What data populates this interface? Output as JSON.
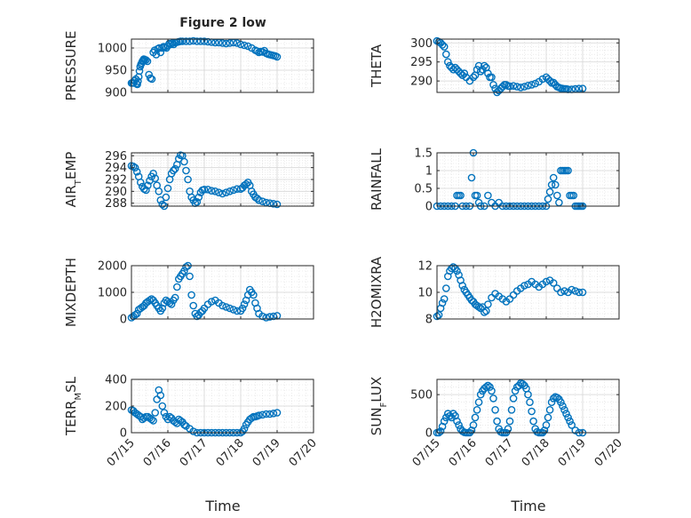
{
  "figure": {
    "title": "Figure 2 low",
    "marker_color": "#0072bd",
    "x_ticks": [
      "07/15",
      "07/16",
      "07/17",
      "07/18",
      "07/19",
      "07/20"
    ],
    "x_axis_label": "Time",
    "grid": true
  },
  "chart_data": [
    {
      "type": "scatter",
      "ylabel": "PRESSURE",
      "ylim": [
        900,
        1020
      ],
      "yticks": [
        "900",
        "950",
        "1000"
      ],
      "x": [
        0.0,
        0.03,
        0.06,
        0.09,
        0.12,
        0.14,
        0.16,
        0.18,
        0.2,
        0.22,
        0.24,
        0.26,
        0.28,
        0.3,
        0.32,
        0.34,
        0.36,
        0.4,
        0.44,
        0.48,
        0.52,
        0.56,
        0.6,
        0.64,
        0.68,
        0.72,
        0.76,
        0.8,
        0.84,
        0.88,
        0.92,
        0.96,
        1.0,
        1.04,
        1.08,
        1.12,
        1.16,
        1.2,
        1.25,
        1.3,
        1.35,
        1.4,
        1.5,
        1.6,
        1.7,
        1.8,
        1.9,
        2.0,
        2.1,
        2.2,
        2.3,
        2.4,
        2.5,
        2.6,
        2.7,
        2.8,
        2.9,
        3.0,
        3.1,
        3.2,
        3.3,
        3.4,
        3.45,
        3.5,
        3.55,
        3.6,
        3.65,
        3.7,
        3.75,
        3.8,
        3.85,
        3.9,
        3.95,
        4.0
      ],
      "y": [
        921,
        922,
        921,
        926,
        930,
        920,
        918,
        925,
        935,
        948,
        958,
        963,
        966,
        970,
        972,
        975,
        974,
        973,
        970,
        940,
        932,
        930,
        990,
        995,
        985,
        998,
        1000,
        990,
        1000,
        1003,
        1002,
        1000,
        1005,
        1010,
        1008,
        1011,
        1008,
        1012,
        1013,
        1014,
        1015,
        1015,
        1015,
        1015,
        1016,
        1015,
        1015,
        1015,
        1014,
        1013,
        1012,
        1012,
        1011,
        1010,
        1011,
        1012,
        1011,
        1008,
        1006,
        1004,
        1000,
        995,
        993,
        990,
        992,
        991,
        994,
        988,
        986,
        985,
        984,
        983,
        982,
        980
      ]
    },
    {
      "type": "scatter",
      "ylabel": "THETA",
      "ylim": [
        287,
        301
      ],
      "yticks": [
        "290",
        "295",
        "300"
      ],
      "x": [
        0.0,
        0.05,
        0.1,
        0.15,
        0.2,
        0.25,
        0.3,
        0.35,
        0.4,
        0.45,
        0.5,
        0.55,
        0.6,
        0.65,
        0.7,
        0.75,
        0.8,
        0.9,
        1.0,
        1.05,
        1.1,
        1.15,
        1.2,
        1.25,
        1.3,
        1.35,
        1.4,
        1.45,
        1.5,
        1.55,
        1.6,
        1.65,
        1.7,
        1.75,
        1.8,
        1.85,
        1.9,
        1.95,
        2.0,
        2.1,
        2.2,
        2.3,
        2.4,
        2.5,
        2.6,
        2.7,
        2.8,
        2.9,
        3.0,
        3.05,
        3.1,
        3.15,
        3.2,
        3.25,
        3.3,
        3.35,
        3.4,
        3.45,
        3.5,
        3.55,
        3.6,
        3.7,
        3.8,
        3.9,
        4.0
      ],
      "y": [
        300.5,
        300.3,
        300,
        299.5,
        299,
        297,
        295,
        294,
        293.5,
        293,
        293.5,
        293,
        292.5,
        292,
        291.5,
        292,
        291,
        290,
        291,
        291.5,
        293,
        294,
        292.5,
        293,
        294,
        293.5,
        292,
        291,
        291,
        289,
        288,
        287,
        287.5,
        288,
        288.5,
        289,
        289,
        288.7,
        288.6,
        288.7,
        288.5,
        288.3,
        288.5,
        288.8,
        289,
        289.3,
        289.8,
        290.5,
        291,
        290.5,
        290,
        289.5,
        289.6,
        289,
        288.5,
        288.3,
        288.1,
        288,
        287.9,
        287.9,
        287.8,
        287.8,
        287.9,
        288,
        288
      ]
    },
    {
      "type": "scatter",
      "ylabel": "AIR_TEMP",
      "ylim": [
        287.5,
        296.5
      ],
      "yticks": [
        "288",
        "290",
        "292",
        "294",
        "296"
      ],
      "x": [
        0.0,
        0.05,
        0.1,
        0.15,
        0.2,
        0.25,
        0.3,
        0.35,
        0.4,
        0.45,
        0.5,
        0.55,
        0.6,
        0.65,
        0.7,
        0.75,
        0.8,
        0.85,
        0.9,
        0.95,
        1.0,
        1.05,
        1.1,
        1.15,
        1.2,
        1.25,
        1.3,
        1.35,
        1.4,
        1.45,
        1.5,
        1.55,
        1.6,
        1.65,
        1.7,
        1.75,
        1.8,
        1.85,
        1.9,
        1.95,
        2.0,
        2.1,
        2.2,
        2.3,
        2.4,
        2.5,
        2.6,
        2.7,
        2.8,
        2.9,
        3.0,
        3.05,
        3.1,
        3.15,
        3.2,
        3.25,
        3.3,
        3.35,
        3.4,
        3.45,
        3.5,
        3.6,
        3.7,
        3.8,
        3.9,
        4.0
      ],
      "y": [
        294.3,
        294.2,
        294,
        293.3,
        292.5,
        291.5,
        290.8,
        290.4,
        290.2,
        291,
        291.8,
        292.5,
        293,
        292.2,
        291,
        290,
        288.5,
        287.8,
        287.5,
        289,
        290.5,
        292,
        293,
        293.5,
        293.8,
        294.5,
        295.5,
        296.1,
        296,
        295,
        293.5,
        292,
        290,
        289,
        288.5,
        288,
        288.2,
        289,
        289.8,
        290.2,
        290.3,
        290.3,
        290.1,
        290,
        289.8,
        289.6,
        289.8,
        290,
        290.2,
        290.4,
        290.4,
        290.6,
        291,
        291.2,
        291.5,
        291,
        290,
        289.5,
        289,
        288.8,
        288.5,
        288.3,
        288.1,
        288,
        287.9,
        287.8
      ]
    },
    {
      "type": "scatter",
      "ylabel": "RAINFALL",
      "ylim": [
        0,
        1.5
      ],
      "yticks": [
        "0",
        "0.5",
        "1",
        "1.5"
      ],
      "x": [
        0.0,
        0.1,
        0.2,
        0.3,
        0.4,
        0.5,
        0.55,
        0.6,
        0.65,
        0.7,
        0.8,
        0.9,
        0.95,
        1.0,
        1.05,
        1.1,
        1.15,
        1.2,
        1.3,
        1.4,
        1.5,
        1.6,
        1.7,
        1.8,
        1.9,
        2.0,
        2.1,
        2.2,
        2.3,
        2.4,
        2.5,
        2.6,
        2.7,
        2.8,
        2.9,
        3.0,
        3.05,
        3.1,
        3.15,
        3.2,
        3.25,
        3.3,
        3.35,
        3.4,
        3.45,
        3.5,
        3.55,
        3.6,
        3.65,
        3.7,
        3.75,
        3.8,
        3.85,
        3.9,
        3.95,
        4.0
      ],
      "y": [
        0,
        0,
        0,
        0,
        0,
        0,
        0.3,
        0.3,
        0.3,
        0,
        0,
        0,
        0.8,
        1.5,
        0.3,
        0.3,
        0.1,
        0,
        0,
        0.3,
        0.1,
        0,
        0.1,
        0,
        0,
        0,
        0,
        0,
        0,
        0,
        0,
        0,
        0,
        0,
        0,
        0,
        0.2,
        0.4,
        0.6,
        0.8,
        0.6,
        0.3,
        0.1,
        1.0,
        1.0,
        1.0,
        1.0,
        1.0,
        0.3,
        0.3,
        0.3,
        0,
        0,
        0,
        0,
        0
      ]
    },
    {
      "type": "scatter",
      "ylabel": "MIXDEPTH",
      "ylim": [
        0,
        2000
      ],
      "yticks": [
        "0",
        "1000",
        "2000"
      ],
      "x": [
        0.0,
        0.05,
        0.1,
        0.15,
        0.2,
        0.25,
        0.3,
        0.35,
        0.4,
        0.45,
        0.5,
        0.55,
        0.6,
        0.65,
        0.7,
        0.75,
        0.8,
        0.85,
        0.9,
        0.95,
        1.0,
        1.05,
        1.1,
        1.15,
        1.2,
        1.25,
        1.3,
        1.35,
        1.4,
        1.45,
        1.5,
        1.55,
        1.6,
        1.65,
        1.7,
        1.75,
        1.8,
        1.85,
        1.9,
        1.95,
        2.0,
        2.1,
        2.2,
        2.3,
        2.4,
        2.5,
        2.6,
        2.7,
        2.8,
        2.9,
        3.0,
        3.05,
        3.1,
        3.15,
        3.2,
        3.25,
        3.3,
        3.35,
        3.4,
        3.45,
        3.5,
        3.6,
        3.7,
        3.8,
        3.9,
        4.0
      ],
      "y": [
        50,
        100,
        150,
        200,
        350,
        400,
        450,
        500,
        600,
        650,
        700,
        750,
        700,
        600,
        500,
        400,
        300,
        400,
        600,
        700,
        650,
        600,
        550,
        700,
        800,
        1200,
        1500,
        1600,
        1700,
        1800,
        1950,
        2000,
        1600,
        900,
        500,
        200,
        100,
        150,
        250,
        300,
        400,
        550,
        650,
        700,
        600,
        500,
        450,
        400,
        350,
        300,
        300,
        400,
        550,
        700,
        900,
        1100,
        1000,
        900,
        600,
        400,
        200,
        100,
        50,
        80,
        100,
        120
      ]
    },
    {
      "type": "scatter",
      "ylabel": "H2OMIXRA",
      "ylim": [
        8,
        12
      ],
      "yticks": [
        "8",
        "10",
        "12"
      ],
      "x": [
        0.0,
        0.05,
        0.1,
        0.15,
        0.2,
        0.25,
        0.3,
        0.35,
        0.4,
        0.45,
        0.5,
        0.55,
        0.6,
        0.65,
        0.7,
        0.75,
        0.8,
        0.85,
        0.9,
        0.95,
        1.0,
        1.05,
        1.1,
        1.15,
        1.2,
        1.25,
        1.3,
        1.35,
        1.4,
        1.5,
        1.6,
        1.7,
        1.8,
        1.9,
        2.0,
        2.1,
        2.2,
        2.3,
        2.4,
        2.5,
        2.6,
        2.7,
        2.8,
        2.9,
        3.0,
        3.1,
        3.2,
        3.3,
        3.4,
        3.5,
        3.6,
        3.7,
        3.8,
        3.9,
        4.0
      ],
      "y": [
        8.2,
        8.3,
        8.8,
        9.2,
        9.5,
        10.3,
        11.2,
        11.6,
        11.8,
        11.9,
        11.8,
        11.6,
        11.3,
        10.9,
        10.5,
        10.2,
        10,
        9.8,
        9.6,
        9.4,
        9.3,
        9.1,
        9.0,
        8.9,
        8.8,
        8.9,
        8.5,
        8.6,
        9.1,
        9.6,
        9.9,
        9.7,
        9.5,
        9.3,
        9.5,
        9.8,
        10.1,
        10.3,
        10.5,
        10.6,
        10.8,
        10.6,
        10.4,
        10.6,
        10.8,
        10.9,
        10.7,
        10.3,
        10.0,
        10.1,
        10.0,
        10.2,
        10.1,
        10.0,
        10.0
      ]
    },
    {
      "type": "scatter",
      "ylabel": "TERR_MSL",
      "ylim": [
        0,
        400
      ],
      "yticks": [
        "0",
        "200",
        "400"
      ],
      "x": [
        0.0,
        0.05,
        0.1,
        0.15,
        0.2,
        0.25,
        0.3,
        0.35,
        0.4,
        0.45,
        0.5,
        0.55,
        0.6,
        0.65,
        0.7,
        0.75,
        0.8,
        0.85,
        0.9,
        0.95,
        1.0,
        1.05,
        1.1,
        1.15,
        1.2,
        1.25,
        1.3,
        1.35,
        1.4,
        1.45,
        1.5,
        1.6,
        1.7,
        1.8,
        1.9,
        2.0,
        2.1,
        2.2,
        2.3,
        2.4,
        2.5,
        2.6,
        2.7,
        2.8,
        2.9,
        3.0,
        3.05,
        3.1,
        3.15,
        3.2,
        3.25,
        3.3,
        3.35,
        3.4,
        3.45,
        3.5,
        3.6,
        3.7,
        3.8,
        3.9,
        4.0
      ],
      "y": [
        170,
        165,
        150,
        140,
        130,
        120,
        100,
        110,
        120,
        120,
        110,
        100,
        90,
        150,
        250,
        320,
        280,
        200,
        150,
        120,
        100,
        120,
        110,
        90,
        80,
        70,
        100,
        90,
        80,
        60,
        50,
        30,
        10,
        0,
        0,
        0,
        0,
        0,
        0,
        0,
        0,
        0,
        0,
        0,
        0,
        0,
        10,
        30,
        60,
        80,
        100,
        110,
        120,
        120,
        125,
        130,
        135,
        140,
        140,
        145,
        150
      ]
    },
    {
      "type": "scatter",
      "ylabel": "SUN_FLUX",
      "ylim": [
        0,
        700
      ],
      "yticks": [
        "0",
        "500"
      ],
      "x": [
        0.0,
        0.05,
        0.1,
        0.15,
        0.2,
        0.25,
        0.3,
        0.35,
        0.4,
        0.45,
        0.5,
        0.55,
        0.6,
        0.65,
        0.7,
        0.75,
        0.8,
        0.85,
        0.9,
        0.95,
        1.0,
        1.05,
        1.1,
        1.15,
        1.2,
        1.25,
        1.3,
        1.35,
        1.4,
        1.45,
        1.5,
        1.55,
        1.6,
        1.65,
        1.7,
        1.75,
        1.8,
        1.85,
        1.9,
        1.95,
        2.0,
        2.05,
        2.1,
        2.15,
        2.2,
        2.25,
        2.3,
        2.35,
        2.4,
        2.45,
        2.5,
        2.55,
        2.6,
        2.65,
        2.7,
        2.75,
        2.8,
        2.85,
        2.9,
        2.95,
        3.0,
        3.05,
        3.1,
        3.15,
        3.2,
        3.25,
        3.3,
        3.35,
        3.4,
        3.45,
        3.5,
        3.55,
        3.6,
        3.65,
        3.7,
        3.8,
        3.9,
        4.0
      ],
      "y": [
        0,
        0,
        20,
        80,
        150,
        200,
        250,
        220,
        200,
        250,
        220,
        150,
        100,
        50,
        20,
        5,
        0,
        0,
        0,
        30,
        100,
        200,
        300,
        400,
        500,
        550,
        580,
        600,
        620,
        600,
        550,
        450,
        300,
        150,
        50,
        10,
        0,
        0,
        0,
        50,
        150,
        300,
        450,
        550,
        600,
        620,
        650,
        640,
        620,
        580,
        500,
        400,
        280,
        150,
        50,
        10,
        0,
        0,
        0,
        30,
        100,
        200,
        300,
        400,
        450,
        470,
        460,
        440,
        400,
        350,
        300,
        250,
        200,
        150,
        100,
        30,
        0,
        0
      ]
    }
  ]
}
